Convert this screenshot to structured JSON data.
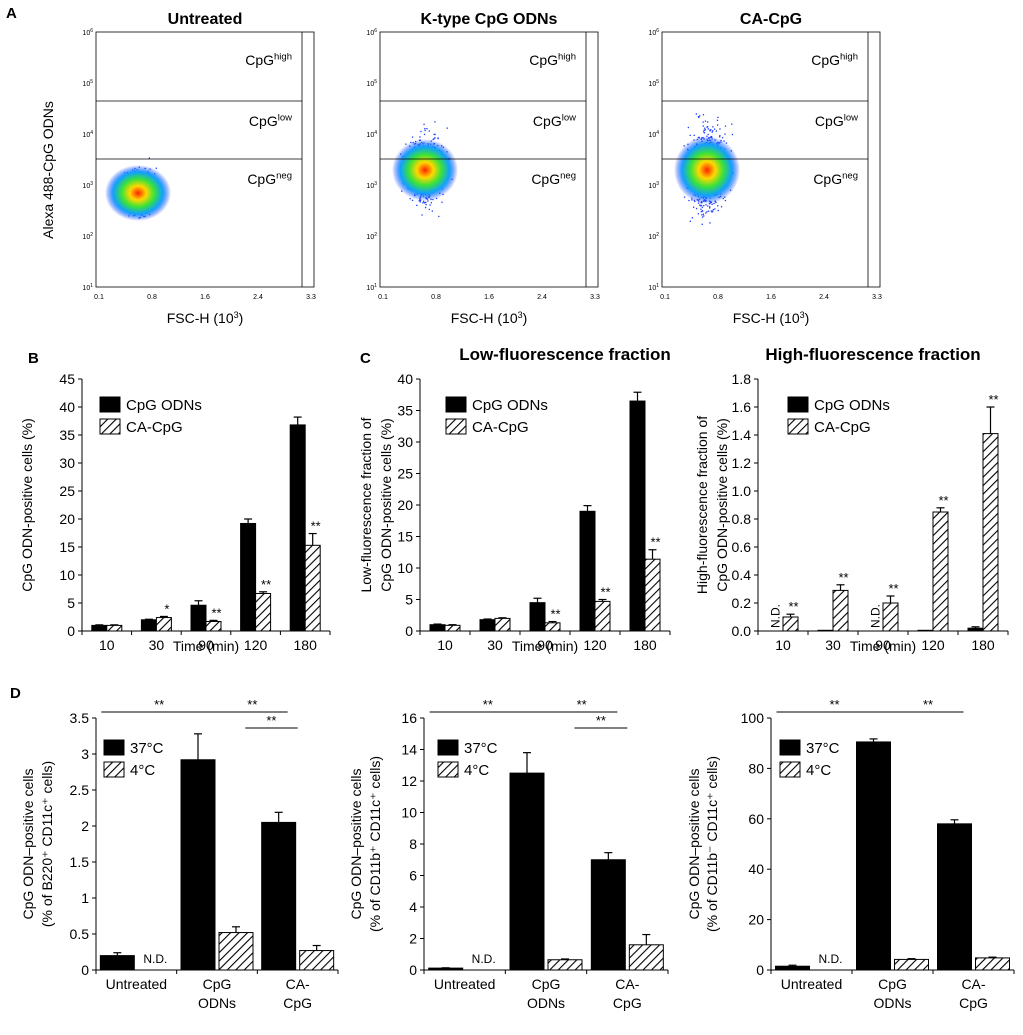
{
  "panel_letters": {
    "a": "A",
    "b": "B",
    "c": "C",
    "d": "D"
  },
  "flow": {
    "ylabel": "Alexa 488-CpG ODNs",
    "xlabel": "FSC-H (10",
    "xlabel_sup": "3",
    "xlabel_end": ")",
    "xticks": [
      "0.1",
      "0.8",
      "1.6",
      "2.4",
      "3.3"
    ],
    "yticks": [
      "10",
      "10",
      "10",
      "10",
      "10",
      "10"
    ],
    "yticks_exp": [
      "1",
      "2",
      "3",
      "4",
      "5",
      "6"
    ],
    "gates": [
      {
        "base": "CpG",
        "sup": "high"
      },
      {
        "base": "CpG",
        "sup": "low"
      },
      {
        "base": "CpG",
        "sup": "neg"
      }
    ],
    "panels": [
      {
        "title": "Untreated",
        "spread": 1.0
      },
      {
        "title": "K-type CpG ODNs",
        "spread": 1.6
      },
      {
        "title": "CA-CpG",
        "spread": 2.0
      }
    ]
  },
  "chart_data": [
    {
      "type": "bar",
      "id": "B",
      "title": "",
      "xlabel": "Time (min)",
      "ylabel": "CpG ODN-positive  cells (%)",
      "categories": [
        "10",
        "30",
        "90",
        "120",
        "180"
      ],
      "ylim": [
        0,
        45
      ],
      "yticks": [
        0,
        5,
        10,
        15,
        20,
        25,
        30,
        35,
        40,
        45
      ],
      "decimals": 0,
      "legend": [
        "CpG ODNs",
        "CA-CpG"
      ],
      "series": [
        {
          "name": "CpG ODNs",
          "values": [
            1.0,
            2.0,
            4.6,
            19.2,
            36.8
          ],
          "errors": [
            0.1,
            0.1,
            0.8,
            0.8,
            1.4
          ],
          "marks": [
            "",
            "",
            "",
            "",
            ""
          ]
        },
        {
          "name": "CA-CpG",
          "values": [
            1.0,
            2.4,
            1.7,
            6.7,
            15.3
          ],
          "errors": [
            0.1,
            0.2,
            0.2,
            0.3,
            2.1
          ],
          "marks": [
            "",
            "*",
            "**",
            "**",
            "**"
          ]
        }
      ]
    },
    {
      "type": "bar",
      "id": "C-low",
      "title": "Low-fluorescence fraction",
      "xlabel": "Time (min)",
      "ylabel": [
        "Low-fluorescence  fraction of",
        "CpG ODN-positive  cells (%)"
      ],
      "categories": [
        "10",
        "30",
        "90",
        "120",
        "180"
      ],
      "ylim": [
        0,
        40
      ],
      "yticks": [
        0,
        5,
        10,
        15,
        20,
        25,
        30,
        35,
        40
      ],
      "decimals": 0,
      "legend": [
        "CpG ODNs",
        "CA-CpG"
      ],
      "series": [
        {
          "name": "CpG ODNs",
          "values": [
            1.0,
            1.8,
            4.5,
            19.0,
            36.5
          ],
          "errors": [
            0.1,
            0.1,
            0.7,
            0.9,
            1.4
          ],
          "marks": [
            "",
            "",
            "",
            "",
            ""
          ]
        },
        {
          "name": "CA-CpG",
          "values": [
            0.9,
            2.0,
            1.3,
            4.7,
            11.4
          ],
          "errors": [
            0.1,
            0.1,
            0.2,
            0.3,
            1.5
          ],
          "marks": [
            "",
            "",
            "**",
            "**",
            "**"
          ]
        }
      ]
    },
    {
      "type": "bar",
      "id": "C-high",
      "title": "High-fluorescence fraction",
      "xlabel": "Time (min)",
      "ylabel": [
        "High-fluorescence  fraction of",
        "CpG ODN-positive  cells (%)"
      ],
      "categories": [
        "10",
        "30",
        "90",
        "120",
        "180"
      ],
      "ylim": [
        0,
        1.8
      ],
      "yticks": [
        0,
        0.2,
        0.4,
        0.6,
        0.8,
        1.0,
        1.2,
        1.4,
        1.6,
        1.8
      ],
      "decimals": 1,
      "legend": [
        "CpG ODNs",
        "CA-CpG"
      ],
      "series": [
        {
          "name": "CpG ODNs",
          "values": [
            0,
            0.005,
            0,
            0.005,
            0.02
          ],
          "errors": [
            0,
            0,
            0,
            0,
            0.01
          ],
          "marks": [
            "N.D.",
            "",
            "N.D.",
            "",
            ""
          ]
        },
        {
          "name": "CA-CpG",
          "values": [
            0.1,
            0.29,
            0.2,
            0.85,
            1.41
          ],
          "errors": [
            0.02,
            0.04,
            0.05,
            0.03,
            0.19
          ],
          "marks": [
            "**",
            "**",
            "**",
            "**",
            "**"
          ]
        }
      ]
    },
    {
      "type": "bar",
      "id": "D1",
      "title": "",
      "xlabel": "",
      "ylabel": [
        "CpG ODN–positive  cells",
        "(% of B220⁺ CD11c⁺ cells)"
      ],
      "categories": [
        [
          "Untreated"
        ],
        [
          "CpG",
          "ODNs"
        ],
        [
          "CA-",
          "CpG"
        ]
      ],
      "ylim": [
        0,
        3.5
      ],
      "yticks": [
        0,
        0.5,
        1,
        1.5,
        2,
        2.5,
        3,
        3.5
      ],
      "decimals": -1,
      "legend": [
        "37°C",
        "4°C"
      ],
      "series": [
        {
          "name": "37°C",
          "values": [
            0.2,
            2.92,
            2.05
          ],
          "errors": [
            0.04,
            0.36,
            0.14
          ],
          "marks": [
            "",
            "",
            ""
          ]
        },
        {
          "name": "4°C",
          "values": [
            0,
            0.52,
            0.27
          ],
          "errors": [
            0,
            0.08,
            0.07
          ],
          "marks": [
            "N.D.",
            "",
            ""
          ]
        }
      ],
      "sig": [
        {
          "from": 0,
          "to": 1,
          "label": "**"
        },
        {
          "from": 1,
          "to": 2,
          "label": "**"
        },
        {
          "from": 1.35,
          "to": 2,
          "label": "**"
        }
      ]
    },
    {
      "type": "bar",
      "id": "D2",
      "title": "",
      "xlabel": "",
      "ylabel": [
        "CpG ODN–positive  cells",
        "(% of CD11b⁺ CD11c⁺ cells)"
      ],
      "categories": [
        [
          "Untreated"
        ],
        [
          "CpG",
          "ODNs"
        ],
        [
          "CA-",
          "CpG"
        ]
      ],
      "ylim": [
        0,
        16
      ],
      "yticks": [
        0,
        2,
        4,
        6,
        8,
        10,
        12,
        14,
        16
      ],
      "decimals": 0,
      "legend": [
        "37°C",
        "4°C"
      ],
      "series": [
        {
          "name": "37°C",
          "values": [
            0.12,
            12.5,
            7.0
          ],
          "errors": [
            0.02,
            1.3,
            0.45
          ],
          "marks": [
            "",
            "",
            ""
          ]
        },
        {
          "name": "4°C",
          "values": [
            0,
            0.65,
            1.6
          ],
          "errors": [
            0,
            0.05,
            0.65
          ],
          "marks": [
            "N.D.",
            "",
            ""
          ]
        }
      ],
      "sig": [
        {
          "from": 0,
          "to": 1,
          "label": "**"
        },
        {
          "from": 1,
          "to": 2,
          "label": "**"
        },
        {
          "from": 1.35,
          "to": 2,
          "label": "**"
        }
      ]
    },
    {
      "type": "bar",
      "id": "D3",
      "title": "",
      "xlabel": "",
      "ylabel": [
        "CpG ODN–positive  cells",
        "(% of CD11b⁻ CD11c⁺ cells)"
      ],
      "categories": [
        [
          "Untreated"
        ],
        [
          "CpG",
          "ODNs"
        ],
        [
          "CA-",
          "CpG"
        ]
      ],
      "ylim": [
        0,
        100
      ],
      "yticks": [
        0,
        20,
        40,
        60,
        80,
        100
      ],
      "decimals": 0,
      "legend": [
        "37°C",
        "4°C"
      ],
      "series": [
        {
          "name": "37°C",
          "values": [
            1.5,
            90.5,
            58.0
          ],
          "errors": [
            0.4,
            1.2,
            1.6
          ],
          "marks": [
            "",
            "",
            ""
          ]
        },
        {
          "name": "4°C",
          "values": [
            0,
            4.2,
            4.8
          ],
          "errors": [
            0,
            0.3,
            0.3
          ],
          "marks": [
            "N.D.",
            "",
            ""
          ]
        }
      ],
      "sig": [
        {
          "from": 0,
          "to": 1,
          "label": "**"
        },
        {
          "from": 1,
          "to": 2,
          "label": "**"
        }
      ]
    }
  ]
}
